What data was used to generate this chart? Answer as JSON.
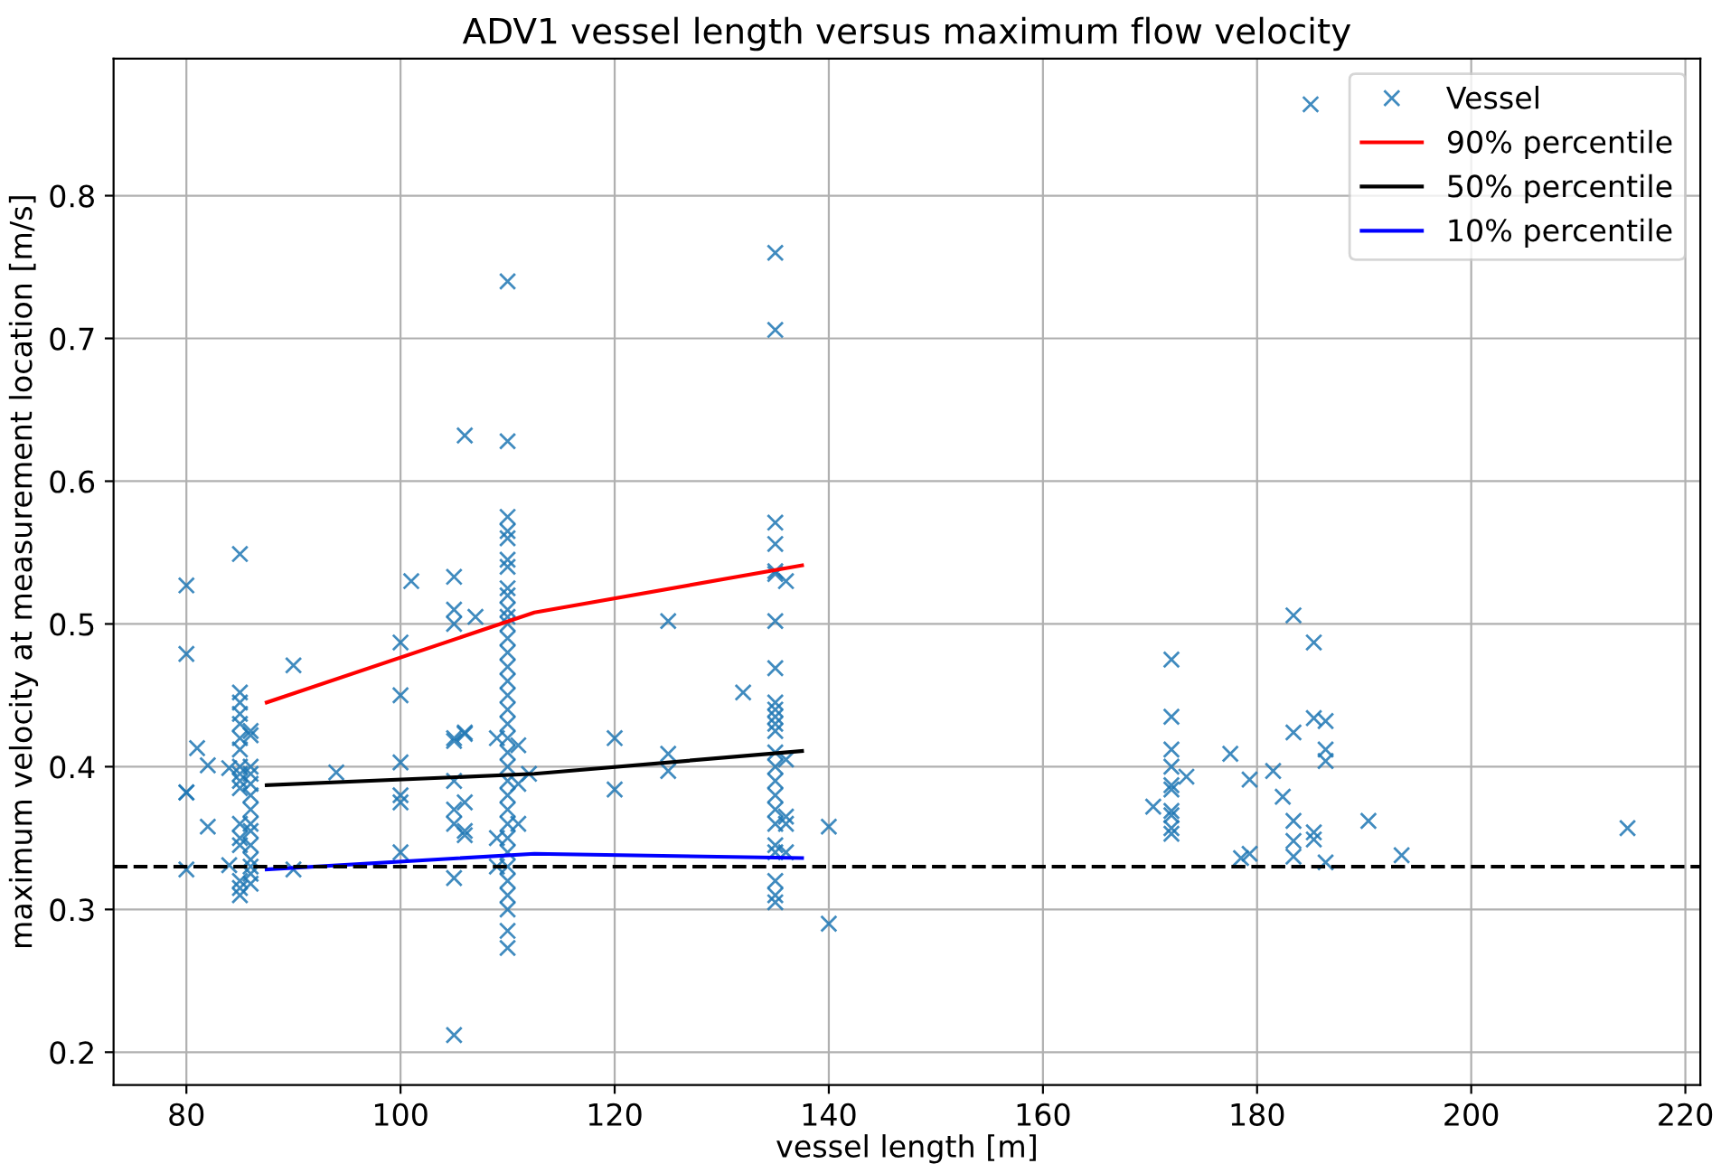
{
  "chart_data": {
    "type": "scatter",
    "title": "ADV1 vessel length versus maximum flow velocity",
    "xlabel": "vessel length [m]",
    "ylabel": "maximum velocity at measurement location [m/s]",
    "xlim": [
      73.2,
      221.4
    ],
    "ylim": [
      0.177,
      0.896
    ],
    "xticks": [
      80,
      100,
      120,
      140,
      160,
      180,
      200,
      220
    ],
    "yticks": [
      0.2,
      0.3,
      0.4,
      0.5,
      0.6,
      0.7,
      0.8
    ],
    "grid": true,
    "legend": "top right",
    "ref_lines": [
      {
        "axis": "y",
        "value": 0.33,
        "color": "#000000",
        "line_style": "dashed"
      }
    ],
    "series": [
      {
        "name": "Vessel",
        "marker": "cross",
        "color": "#1f77b4",
        "x": [
          80,
          80,
          80,
          80,
          80,
          81,
          82,
          82,
          84,
          84,
          85,
          85,
          85,
          85,
          85,
          85,
          85,
          85,
          85,
          85,
          85,
          85,
          85,
          85,
          85,
          85,
          85,
          86,
          86,
          86,
          86,
          86,
          86,
          86,
          86,
          86,
          86,
          86,
          86,
          86,
          86,
          90,
          90,
          94,
          100,
          100,
          100,
          100,
          100,
          100,
          101,
          105,
          105,
          105,
          105,
          105,
          105,
          105,
          105,
          105,
          105,
          106,
          106,
          106,
          106,
          106,
          106,
          107,
          109,
          109,
          109,
          110,
          110,
          110,
          110,
          110,
          110,
          110,
          110,
          110,
          110,
          110,
          110,
          110,
          110,
          110,
          110,
          110,
          110,
          110,
          110,
          110,
          110,
          110,
          110,
          110,
          110,
          110,
          110,
          110,
          110,
          110,
          110,
          110,
          110,
          111,
          111,
          111,
          112,
          120,
          120,
          125,
          125,
          125,
          132,
          135,
          135,
          135,
          135,
          135,
          135,
          135,
          135,
          135,
          135,
          135,
          135,
          135,
          135,
          135,
          135,
          135,
          135,
          135,
          135,
          135,
          135,
          135,
          135,
          136,
          136,
          136,
          136,
          136,
          140,
          140,
          170.3,
          172,
          172,
          172,
          172,
          172,
          172,
          172,
          172,
          172,
          172,
          173.4,
          177.5,
          178.5,
          179.3,
          179.3,
          181.5,
          182.4,
          183.4,
          183.4,
          183.4,
          183.4,
          183.4,
          185,
          185.3,
          185.3,
          185.3,
          185.3,
          186.4,
          186.4,
          186.4,
          186.4,
          190.4,
          193.5,
          214.6
        ],
        "values": [
          0.527,
          0.479,
          0.382,
          0.382,
          0.328,
          0.413,
          0.401,
          0.358,
          0.331,
          0.399,
          0.549,
          0.452,
          0.445,
          0.437,
          0.43,
          0.42,
          0.412,
          0.4,
          0.395,
          0.39,
          0.385,
          0.36,
          0.35,
          0.345,
          0.32,
          0.315,
          0.31,
          0.425,
          0.422,
          0.4,
          0.395,
          0.388,
          0.38,
          0.37,
          0.36,
          0.355,
          0.345,
          0.335,
          0.33,
          0.325,
          0.318,
          0.471,
          0.328,
          0.396,
          0.487,
          0.45,
          0.403,
          0.38,
          0.375,
          0.34,
          0.53,
          0.533,
          0.51,
          0.5,
          0.42,
          0.418,
          0.39,
          0.37,
          0.36,
          0.322,
          0.212,
          0.632,
          0.424,
          0.423,
          0.375,
          0.355,
          0.352,
          0.505,
          0.42,
          0.35,
          0.33,
          0.74,
          0.628,
          0.575,
          0.565,
          0.56,
          0.545,
          0.54,
          0.525,
          0.52,
          0.51,
          0.505,
          0.5,
          0.49,
          0.48,
          0.47,
          0.46,
          0.45,
          0.44,
          0.43,
          0.42,
          0.41,
          0.4,
          0.39,
          0.38,
          0.37,
          0.36,
          0.35,
          0.34,
          0.33,
          0.32,
          0.31,
          0.3,
          0.285,
          0.273,
          0.415,
          0.388,
          0.36,
          0.395,
          0.42,
          0.384,
          0.502,
          0.409,
          0.397,
          0.452,
          0.76,
          0.706,
          0.571,
          0.556,
          0.537,
          0.535,
          0.502,
          0.469,
          0.445,
          0.44,
          0.435,
          0.43,
          0.425,
          0.41,
          0.4,
          0.39,
          0.38,
          0.37,
          0.36,
          0.345,
          0.34,
          0.32,
          0.31,
          0.305,
          0.53,
          0.405,
          0.365,
          0.36,
          0.34,
          0.358,
          0.29,
          0.372,
          0.475,
          0.435,
          0.412,
          0.4,
          0.387,
          0.384,
          0.369,
          0.366,
          0.357,
          0.353,
          0.393,
          0.409,
          0.336,
          0.391,
          0.339,
          0.397,
          0.379,
          0.506,
          0.424,
          0.362,
          0.348,
          0.337,
          0.864,
          0.487,
          0.434,
          0.354,
          0.349,
          0.432,
          0.412,
          0.404,
          0.333,
          0.362,
          0.338,
          0.357
        ]
      },
      {
        "name": "90% percentile",
        "type": "line",
        "marker": "none",
        "color": "#ff0000",
        "x": [
          87.5,
          112.5,
          137.5
        ],
        "values": [
          0.445,
          0.508,
          0.541
        ]
      },
      {
        "name": "50% percentile",
        "type": "line",
        "marker": "none",
        "color": "#000000",
        "x": [
          87.5,
          112.5,
          137.5
        ],
        "values": [
          0.387,
          0.395,
          0.411
        ]
      },
      {
        "name": "10% percentile",
        "type": "line",
        "marker": "none",
        "color": "#0000ff",
        "x": [
          87.5,
          112.5,
          137.5
        ],
        "values": [
          0.328,
          0.339,
          0.336
        ]
      }
    ]
  }
}
